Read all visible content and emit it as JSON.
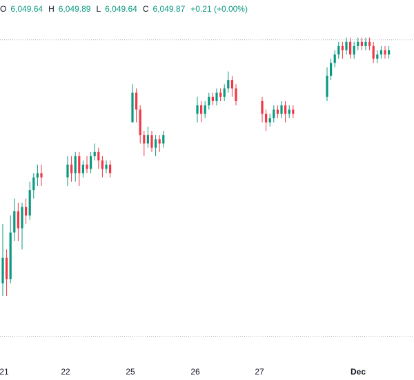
{
  "legend": {
    "open_label": "O",
    "open": "6,049.64",
    "high_label": "H",
    "high": "6,049.89",
    "low_label": "L",
    "low": "6,049.64",
    "close_label": "C",
    "close": "6,049.87",
    "change": "+0.21 (+0.00%)"
  },
  "colors": {
    "up": "#089981",
    "down": "#f23645",
    "grid": "#b2b5be",
    "text": "#131722"
  },
  "chart_data": {
    "type": "candlestick",
    "title": "",
    "xlabel": "",
    "ylabel": "",
    "ylim": [
      5980,
      6058
    ],
    "reference_lines": [
      6053.5,
      5983.5
    ],
    "x_ticks": [
      {
        "label": "21",
        "bold": false
      },
      {
        "label": "22",
        "bold": false
      },
      {
        "label": "25",
        "bold": false
      },
      {
        "label": "26",
        "bold": false
      },
      {
        "label": "27",
        "bold": false
      },
      {
        "label": "Dec",
        "bold": true
      }
    ],
    "sessions": [
      {
        "day": "21",
        "candles": [
          [
            5996,
            6002,
            6010,
            5993
          ],
          [
            6002,
            5997,
            6004,
            5993
          ],
          [
            5997,
            6008,
            6012,
            5996
          ],
          [
            6008,
            6013,
            6016,
            6006
          ],
          [
            6013,
            6009,
            6015,
            6006
          ],
          [
            6009,
            6014,
            6015,
            6004
          ],
          [
            6014,
            6012,
            6016,
            6010
          ],
          [
            6012,
            6018,
            6020,
            6011
          ],
          [
            6018,
            6021,
            6022,
            6016
          ],
          [
            6021,
            6022,
            6024,
            6019
          ],
          [
            6022,
            6021,
            6024,
            6019
          ]
        ]
      },
      {
        "day": "22",
        "candles": [
          [
            6021,
            6024,
            6026,
            6019
          ],
          [
            6024,
            6022,
            6026,
            6020
          ],
          [
            6022,
            6026,
            6027,
            6020
          ],
          [
            6026,
            6022,
            6027,
            6019
          ],
          [
            6022,
            6024,
            6025,
            6021
          ],
          [
            6024,
            6023,
            6026,
            6022
          ],
          [
            6023,
            6026,
            6027,
            6022
          ],
          [
            6026,
            6027,
            6029,
            6025
          ],
          [
            6027,
            6025,
            6028,
            6023
          ],
          [
            6025,
            6023,
            6026,
            6021
          ],
          [
            6023,
            6024,
            6025,
            6022
          ],
          [
            6024,
            6022,
            6025,
            6021
          ]
        ]
      },
      {
        "day": "25",
        "candles": [
          [
            6034,
            6041,
            6043,
            6034
          ],
          [
            6041,
            6037,
            6042,
            6034
          ],
          [
            6037,
            6031,
            6038,
            6029
          ],
          [
            6031,
            6029,
            6032,
            6026
          ],
          [
            6029,
            6031,
            6033,
            6028
          ],
          [
            6031,
            6028,
            6032,
            6027
          ],
          [
            6028,
            6030,
            6031,
            6026
          ],
          [
            6030,
            6029,
            6031,
            6027
          ],
          [
            6029,
            6031,
            6032,
            6028
          ]
        ]
      },
      {
        "day": "26",
        "candles": [
          [
            6036,
            6038,
            6040,
            6034
          ],
          [
            6038,
            6036,
            6039,
            6034
          ],
          [
            6036,
            6038,
            6039,
            6035
          ],
          [
            6038,
            6040,
            6041,
            6037
          ],
          [
            6040,
            6039,
            6041,
            6038
          ],
          [
            6039,
            6041,
            6042,
            6038
          ],
          [
            6041,
            6040,
            6042,
            6039
          ],
          [
            6040,
            6042,
            6043,
            6039
          ],
          [
            6042,
            6044,
            6046,
            6041
          ],
          [
            6044,
            6042,
            6045,
            6040
          ],
          [
            6042,
            6039,
            6043,
            6038
          ]
        ]
      },
      {
        "day": "27",
        "candles": [
          [
            6039,
            6036,
            6040,
            6034
          ],
          [
            6036,
            6034,
            6037,
            6032
          ],
          [
            6034,
            6035,
            6036,
            6033
          ],
          [
            6035,
            6037,
            6038,
            6034
          ],
          [
            6037,
            6036,
            6038,
            6035
          ],
          [
            6036,
            6038,
            6039,
            6035
          ],
          [
            6038,
            6036,
            6039,
            6034
          ],
          [
            6036,
            6037,
            6038,
            6035
          ],
          [
            6037,
            6036,
            6038,
            6035
          ]
        ]
      },
      {
        "day": "Dec",
        "candles": [
          [
            6040,
            6045,
            6047,
            6039
          ],
          [
            6045,
            6048,
            6049,
            6044
          ],
          [
            6048,
            6050,
            6051,
            6047
          ],
          [
            6050,
            6052,
            6053,
            6049
          ],
          [
            6052,
            6051,
            6053,
            6049
          ],
          [
            6051,
            6053,
            6054,
            6050
          ],
          [
            6053,
            6050,
            6054,
            6049
          ],
          [
            6050,
            6052,
            6053,
            6049
          ],
          [
            6052,
            6053,
            6054,
            6051
          ],
          [
            6053,
            6052,
            6054,
            6051
          ],
          [
            6052,
            6053,
            6054,
            6051
          ],
          [
            6053,
            6052,
            6054,
            6051
          ],
          [
            6052,
            6049,
            6053,
            6048
          ],
          [
            6049,
            6050,
            6051,
            6048
          ],
          [
            6050,
            6051,
            6052,
            6049
          ],
          [
            6051,
            6050,
            6052,
            6049
          ],
          [
            6050,
            6051,
            6052,
            6049
          ]
        ]
      }
    ]
  }
}
